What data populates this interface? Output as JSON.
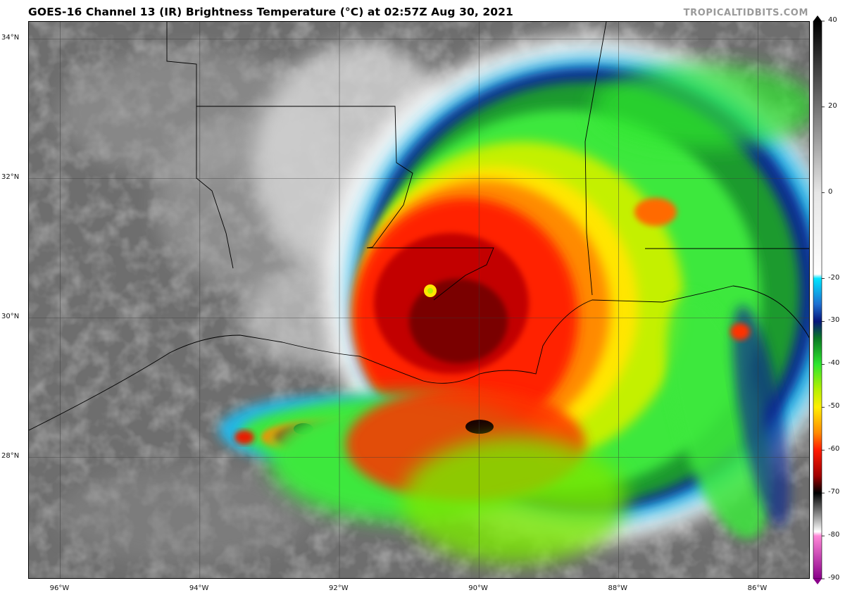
{
  "header": {
    "title": "GOES-16 Channel 13 (IR) Brightness Temperature (°C) at 02:57Z Aug 30, 2021",
    "watermark": "TROPICALTIDBITS.COM"
  },
  "map": {
    "lon_range": [
      -96.45,
      -85.25
    ],
    "lat_range": [
      26.25,
      34.25
    ],
    "lat_labels": [
      {
        "value": 34,
        "text": "34°N"
      },
      {
        "value": 32,
        "text": "32°N"
      },
      {
        "value": 30,
        "text": "30°N"
      },
      {
        "value": 28,
        "text": "28°N"
      }
    ],
    "lon_labels": [
      {
        "value": -96,
        "text": "96°W"
      },
      {
        "value": -94,
        "text": "94°W"
      },
      {
        "value": -92,
        "text": "92°W"
      },
      {
        "value": -90,
        "text": "90°W"
      },
      {
        "value": -88,
        "text": "88°W"
      },
      {
        "value": -86,
        "text": "86°W"
      }
    ],
    "storm_center": {
      "lon": -90.7,
      "lat": 30.4
    }
  },
  "colorbar": {
    "min": -90,
    "max": 40,
    "ticks": [
      40,
      20,
      0,
      -20,
      -30,
      -40,
      -50,
      -60,
      -70,
      -80,
      -90
    ],
    "stops": [
      {
        "t": 40,
        "color": "#000000"
      },
      {
        "t": 0,
        "color": "#e6e6e6"
      },
      {
        "t": -19,
        "color": "#ffffff"
      },
      {
        "t": -20,
        "color": "#00e5ff"
      },
      {
        "t": -26,
        "color": "#1e6fd0"
      },
      {
        "t": -30,
        "color": "#06167a"
      },
      {
        "t": -34,
        "color": "#0a7a24"
      },
      {
        "t": -40,
        "color": "#2ee62e"
      },
      {
        "t": -46,
        "color": "#b8f000"
      },
      {
        "t": -50,
        "color": "#ffee00"
      },
      {
        "t": -56,
        "color": "#ff8a00"
      },
      {
        "t": -60,
        "color": "#ff1a00"
      },
      {
        "t": -66,
        "color": "#a00000"
      },
      {
        "t": -70,
        "color": "#000000"
      },
      {
        "t": -75,
        "color": "#8a8a8a"
      },
      {
        "t": -79,
        "color": "#ffffff"
      },
      {
        "t": -80,
        "color": "#ff88d8"
      },
      {
        "t": -90,
        "color": "#8a008a"
      }
    ]
  }
}
